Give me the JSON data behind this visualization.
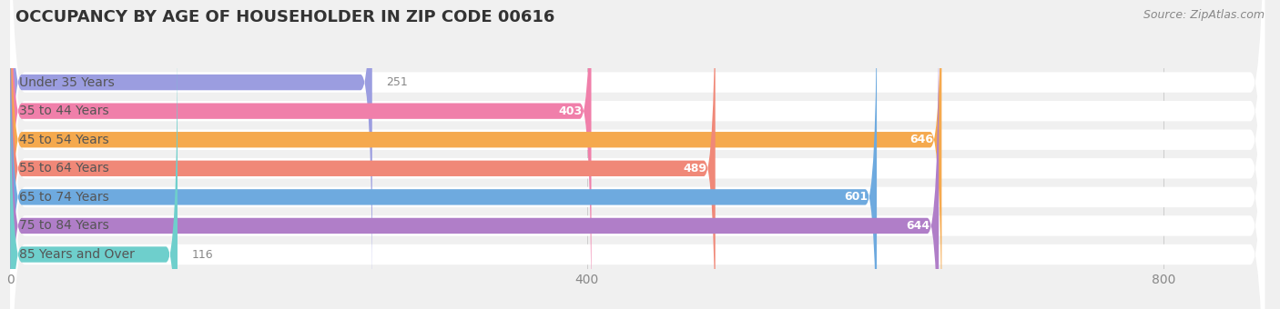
{
  "title": "OCCUPANCY BY AGE OF HOUSEHOLDER IN ZIP CODE 00616",
  "source": "Source: ZipAtlas.com",
  "categories": [
    "Under 35 Years",
    "35 to 44 Years",
    "45 to 54 Years",
    "55 to 64 Years",
    "65 to 74 Years",
    "75 to 84 Years",
    "85 Years and Over"
  ],
  "values": [
    251,
    403,
    646,
    489,
    601,
    644,
    116
  ],
  "colors": [
    "#9b9de0",
    "#f07faa",
    "#f5a94e",
    "#f08878",
    "#6eaadf",
    "#b07ec8",
    "#6ecfcc"
  ],
  "xlim": [
    0,
    870
  ],
  "xticks": [
    0,
    400,
    800
  ],
  "background_color": "#f0f0f0",
  "row_bg_color": "#ffffff",
  "title_fontsize": 13,
  "label_fontsize": 10,
  "value_fontsize": 9,
  "source_fontsize": 9,
  "tick_fontsize": 10
}
